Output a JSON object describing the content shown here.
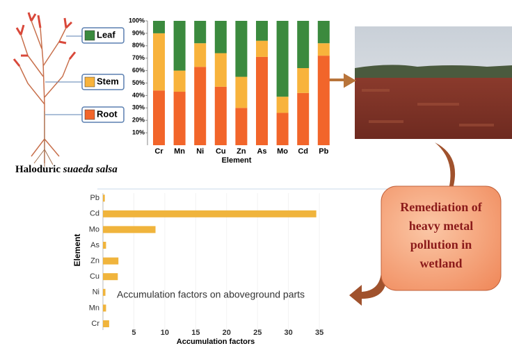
{
  "caption": {
    "prefix": "Haloduric",
    "species": "suaeda salsa"
  },
  "callout": [
    "Remediation of",
    "heavy metal",
    "pollution in",
    "wetland"
  ],
  "chart_data": [
    {
      "type": "bar",
      "stacked": true,
      "x_label": "Element",
      "categories": [
        "Cr",
        "Mn",
        "Ni",
        "Cu",
        "Zn",
        "As",
        "Mo",
        "Cd",
        "Pb"
      ],
      "series": [
        {
          "name": "Root",
          "color": "#f2652a",
          "values": [
            44,
            43,
            63,
            47,
            30,
            71,
            26,
            42,
            72
          ]
        },
        {
          "name": "Stem",
          "color": "#f8b33c",
          "values": [
            46,
            17,
            19,
            27,
            25,
            13,
            13,
            20,
            10
          ]
        },
        {
          "name": "Leaf",
          "color": "#3b8a3e",
          "values": [
            10,
            40,
            18,
            26,
            45,
            16,
            61,
            38,
            18
          ]
        }
      ],
      "ylim": [
        0,
        100
      ],
      "yticks": [
        {
          "value": 10,
          "label": "10%"
        },
        {
          "value": 20,
          "label": "20%"
        },
        {
          "value": 30,
          "label": "30%"
        },
        {
          "value": 40,
          "label": "40%"
        },
        {
          "value": 50,
          "label": "50%"
        },
        {
          "value": 60,
          "label": "60%"
        },
        {
          "value": 70,
          "label": "70%"
        },
        {
          "value": 80,
          "label": "80%"
        },
        {
          "value": 90,
          "label": "90%"
        },
        {
          "value": 100,
          "label": "100%"
        }
      ]
    },
    {
      "type": "bar",
      "orientation": "horizontal",
      "annotation": "Accumulation factors on aboveground parts",
      "x_label": "Accumulation factors",
      "y_label": "Element",
      "categories": [
        "Cr",
        "Mn",
        "Ni",
        "Cu",
        "Zn",
        "As",
        "Mo",
        "Cd",
        "Pb"
      ],
      "values": [
        1.0,
        0.5,
        0.4,
        2.4,
        2.5,
        0.5,
        8.5,
        34.5,
        0.3
      ],
      "color": "#f0b43c",
      "xlim": [
        0,
        36
      ],
      "xticks": [
        5,
        10,
        15,
        20,
        25,
        30,
        35
      ],
      "grid": true
    }
  ]
}
